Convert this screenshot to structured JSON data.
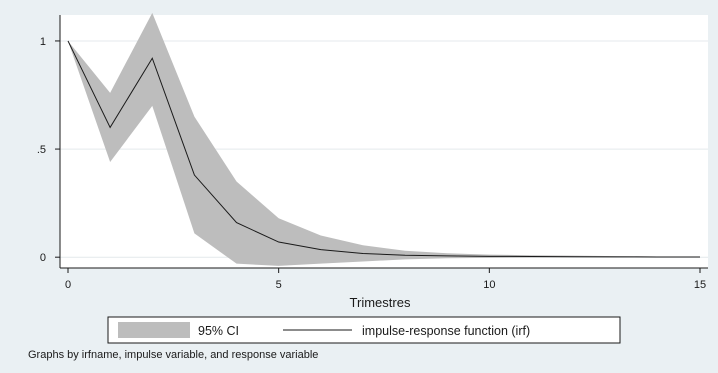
{
  "chart_data": {
    "type": "line",
    "xlabel": "Trimestres",
    "ylabel": "",
    "xlim": [
      0,
      15
    ],
    "ylim": [
      -0.05,
      1.12
    ],
    "x_ticks": [
      0,
      5,
      10,
      15
    ],
    "y_ticks": [
      0,
      0.5,
      1
    ],
    "x_tick_labels": [
      "0",
      "5",
      "10",
      "15"
    ],
    "y_tick_labels": [
      "0",
      ".5",
      "1"
    ],
    "grid": true,
    "legend_position": "bottom",
    "x": [
      0,
      1,
      2,
      3,
      4,
      5,
      6,
      7,
      8,
      9,
      10,
      11,
      12,
      13,
      14,
      15
    ],
    "series": [
      {
        "name": "impulse-response function (irf)",
        "kind": "line",
        "color": "#1a1a1a",
        "values": [
          1.0,
          0.6,
          0.92,
          0.38,
          0.16,
          0.07,
          0.035,
          0.017,
          0.009,
          0.006,
          0.004,
          0.003,
          0.002,
          0.0015,
          0.001,
          0.001
        ]
      },
      {
        "name": "95% CI",
        "kind": "band",
        "color": "#bdbdbd",
        "lower": [
          1.0,
          0.44,
          0.7,
          0.11,
          -0.03,
          -0.04,
          -0.03,
          -0.02,
          -0.01,
          -0.005,
          -0.003,
          -0.002,
          -0.001,
          -0.001,
          -0.0005,
          -0.0005
        ],
        "upper": [
          1.0,
          0.76,
          1.13,
          0.65,
          0.35,
          0.18,
          0.1,
          0.055,
          0.03,
          0.018,
          0.012,
          0.009,
          0.007,
          0.005,
          0.003,
          0.002
        ]
      }
    ],
    "note": "Graphs by irfname, impulse variable, and response variable"
  }
}
